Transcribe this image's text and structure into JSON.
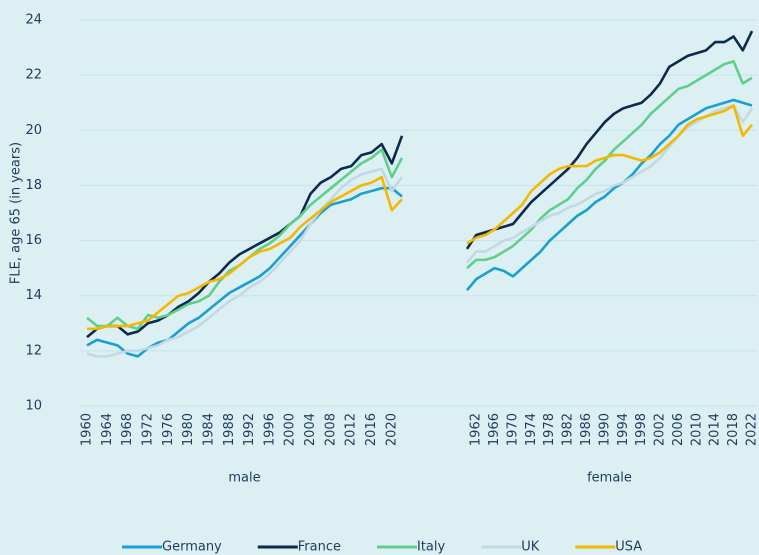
{
  "chart_data": [
    {
      "type": "line",
      "ylabel": "FLE, age 65 (in years)",
      "xlabel": "male",
      "x": [
        1960,
        1962,
        1964,
        1966,
        1968,
        1970,
        1972,
        1974,
        1976,
        1978,
        1980,
        1982,
        1984,
        1986,
        1988,
        1990,
        1992,
        1994,
        1996,
        1998,
        2000,
        2002,
        2004,
        2006,
        2008,
        2010,
        2012,
        2014,
        2016,
        2018,
        2020,
        2022
      ],
      "xlim": [
        1960,
        2022
      ],
      "xticks": [
        1960,
        1964,
        1968,
        1972,
        1976,
        1980,
        1984,
        1988,
        1992,
        1996,
        2000,
        2004,
        2008,
        2012,
        2016,
        2020
      ],
      "ylim": [
        10,
        24
      ],
      "yticks": [
        10,
        12,
        14,
        16,
        18,
        20,
        22,
        24
      ],
      "grid": true,
      "series": [
        {
          "name": "Germany",
          "color": "#1a9fd4",
          "values": [
            12.2,
            12.4,
            12.3,
            12.2,
            11.9,
            11.8,
            12.1,
            12.3,
            12.4,
            12.7,
            13.0,
            13.2,
            13.5,
            13.8,
            14.1,
            14.3,
            14.5,
            14.7,
            15.0,
            15.4,
            15.8,
            16.2,
            16.6,
            17.0,
            17.3,
            17.4,
            17.5,
            17.7,
            17.8,
            17.9,
            17.9,
            17.6
          ]
        },
        {
          "name": "France",
          "color": "#0d2a4e",
          "values": [
            12.5,
            12.8,
            12.9,
            12.9,
            12.6,
            12.7,
            13.0,
            13.1,
            13.3,
            13.6,
            13.8,
            14.1,
            14.5,
            14.8,
            15.2,
            15.5,
            15.7,
            15.9,
            16.1,
            16.3,
            16.6,
            16.9,
            17.7,
            18.1,
            18.3,
            18.6,
            18.7,
            19.1,
            19.2,
            19.5,
            18.8,
            19.8
          ]
        },
        {
          "name": "Italy",
          "color": "#5fcf8a",
          "values": [
            13.2,
            12.9,
            12.9,
            13.2,
            12.9,
            12.8,
            13.3,
            13.2,
            13.3,
            13.5,
            13.7,
            13.8,
            14.0,
            14.5,
            14.9,
            15.1,
            15.4,
            15.7,
            15.9,
            16.2,
            16.6,
            16.9,
            17.3,
            17.6,
            17.9,
            18.2,
            18.5,
            18.8,
            19.0,
            19.3,
            18.3,
            19.0
          ]
        },
        {
          "name": "UK",
          "color": "#c2d9e4",
          "values": [
            11.9,
            11.8,
            11.8,
            11.9,
            12.0,
            12.0,
            12.1,
            12.2,
            12.4,
            12.5,
            12.7,
            12.9,
            13.2,
            13.5,
            13.8,
            14.0,
            14.3,
            14.5,
            14.8,
            15.2,
            15.6,
            16.0,
            16.6,
            17.1,
            17.5,
            17.9,
            18.2,
            18.4,
            18.5,
            18.6,
            17.8,
            18.3
          ]
        },
        {
          "name": "USA",
          "color": "#f5b800",
          "values": [
            12.8,
            12.8,
            12.9,
            12.9,
            12.9,
            13.0,
            13.1,
            13.4,
            13.7,
            14.0,
            14.1,
            14.3,
            14.5,
            14.6,
            14.8,
            15.1,
            15.4,
            15.6,
            15.7,
            15.9,
            16.1,
            16.5,
            16.8,
            17.1,
            17.4,
            17.6,
            17.8,
            18.0,
            18.1,
            18.3,
            17.1,
            17.5
          ]
        }
      ]
    },
    {
      "type": "line",
      "xlabel": "female",
      "x": [
        1960,
        1962,
        1964,
        1966,
        1968,
        1970,
        1972,
        1974,
        1976,
        1978,
        1980,
        1982,
        1984,
        1986,
        1988,
        1990,
        1992,
        1994,
        1996,
        1998,
        2000,
        2002,
        2004,
        2006,
        2008,
        2010,
        2012,
        2014,
        2016,
        2018,
        2020,
        2022
      ],
      "xlim": [
        1960,
        2022
      ],
      "xticks": [
        1962,
        1966,
        1970,
        1974,
        1978,
        1982,
        1986,
        1990,
        1994,
        1998,
        2002,
        2006,
        2010,
        2014,
        2018,
        2022
      ],
      "ylim": [
        10,
        24
      ],
      "series": [
        {
          "color": "#1a9fd4",
          "values": [
            14.2,
            14.6,
            14.8,
            15.0,
            14.9,
            14.7,
            15.0,
            15.3,
            15.6,
            16.0,
            16.3,
            16.6,
            16.9,
            17.1,
            17.4,
            17.6,
            17.9,
            18.1,
            18.4,
            18.8,
            19.1,
            19.5,
            19.8,
            20.2,
            20.4,
            20.6,
            20.8,
            20.9,
            21.0,
            21.1,
            21.0,
            20.9
          ]
        },
        {
          "color": "#0d2a4e",
          "values": [
            15.7,
            16.2,
            16.3,
            16.4,
            16.5,
            16.6,
            17.0,
            17.4,
            17.7,
            18.0,
            18.3,
            18.6,
            19.0,
            19.5,
            19.9,
            20.3,
            20.6,
            20.8,
            20.9,
            21.0,
            21.3,
            21.7,
            22.3,
            22.5,
            22.7,
            22.8,
            22.9,
            23.2,
            23.2,
            23.4,
            22.9,
            23.6
          ]
        },
        {
          "color": "#5fcf8a",
          "values": [
            15.0,
            15.3,
            15.3,
            15.4,
            15.6,
            15.8,
            16.1,
            16.4,
            16.8,
            17.1,
            17.3,
            17.5,
            17.9,
            18.2,
            18.6,
            18.9,
            19.3,
            19.6,
            19.9,
            20.2,
            20.6,
            20.9,
            21.2,
            21.5,
            21.6,
            21.8,
            22.0,
            22.2,
            22.4,
            22.5,
            21.7,
            21.9
          ]
        },
        {
          "color": "#c2d9e4",
          "values": [
            15.2,
            15.6,
            15.6,
            15.8,
            16.0,
            16.1,
            16.3,
            16.5,
            16.7,
            16.9,
            17.0,
            17.2,
            17.3,
            17.5,
            17.7,
            17.8,
            18.0,
            18.1,
            18.3,
            18.5,
            18.7,
            19.0,
            19.4,
            19.8,
            20.1,
            20.3,
            20.5,
            20.7,
            20.8,
            20.9,
            20.3,
            20.8
          ]
        },
        {
          "color": "#f5b800",
          "values": [
            15.9,
            16.1,
            16.2,
            16.4,
            16.7,
            17.0,
            17.3,
            17.8,
            18.1,
            18.4,
            18.6,
            18.7,
            18.7,
            18.7,
            18.9,
            19.0,
            19.1,
            19.1,
            19.0,
            18.9,
            19.0,
            19.2,
            19.5,
            19.8,
            20.2,
            20.4,
            20.5,
            20.6,
            20.7,
            20.9,
            19.8,
            20.2
          ]
        }
      ]
    }
  ]
}
